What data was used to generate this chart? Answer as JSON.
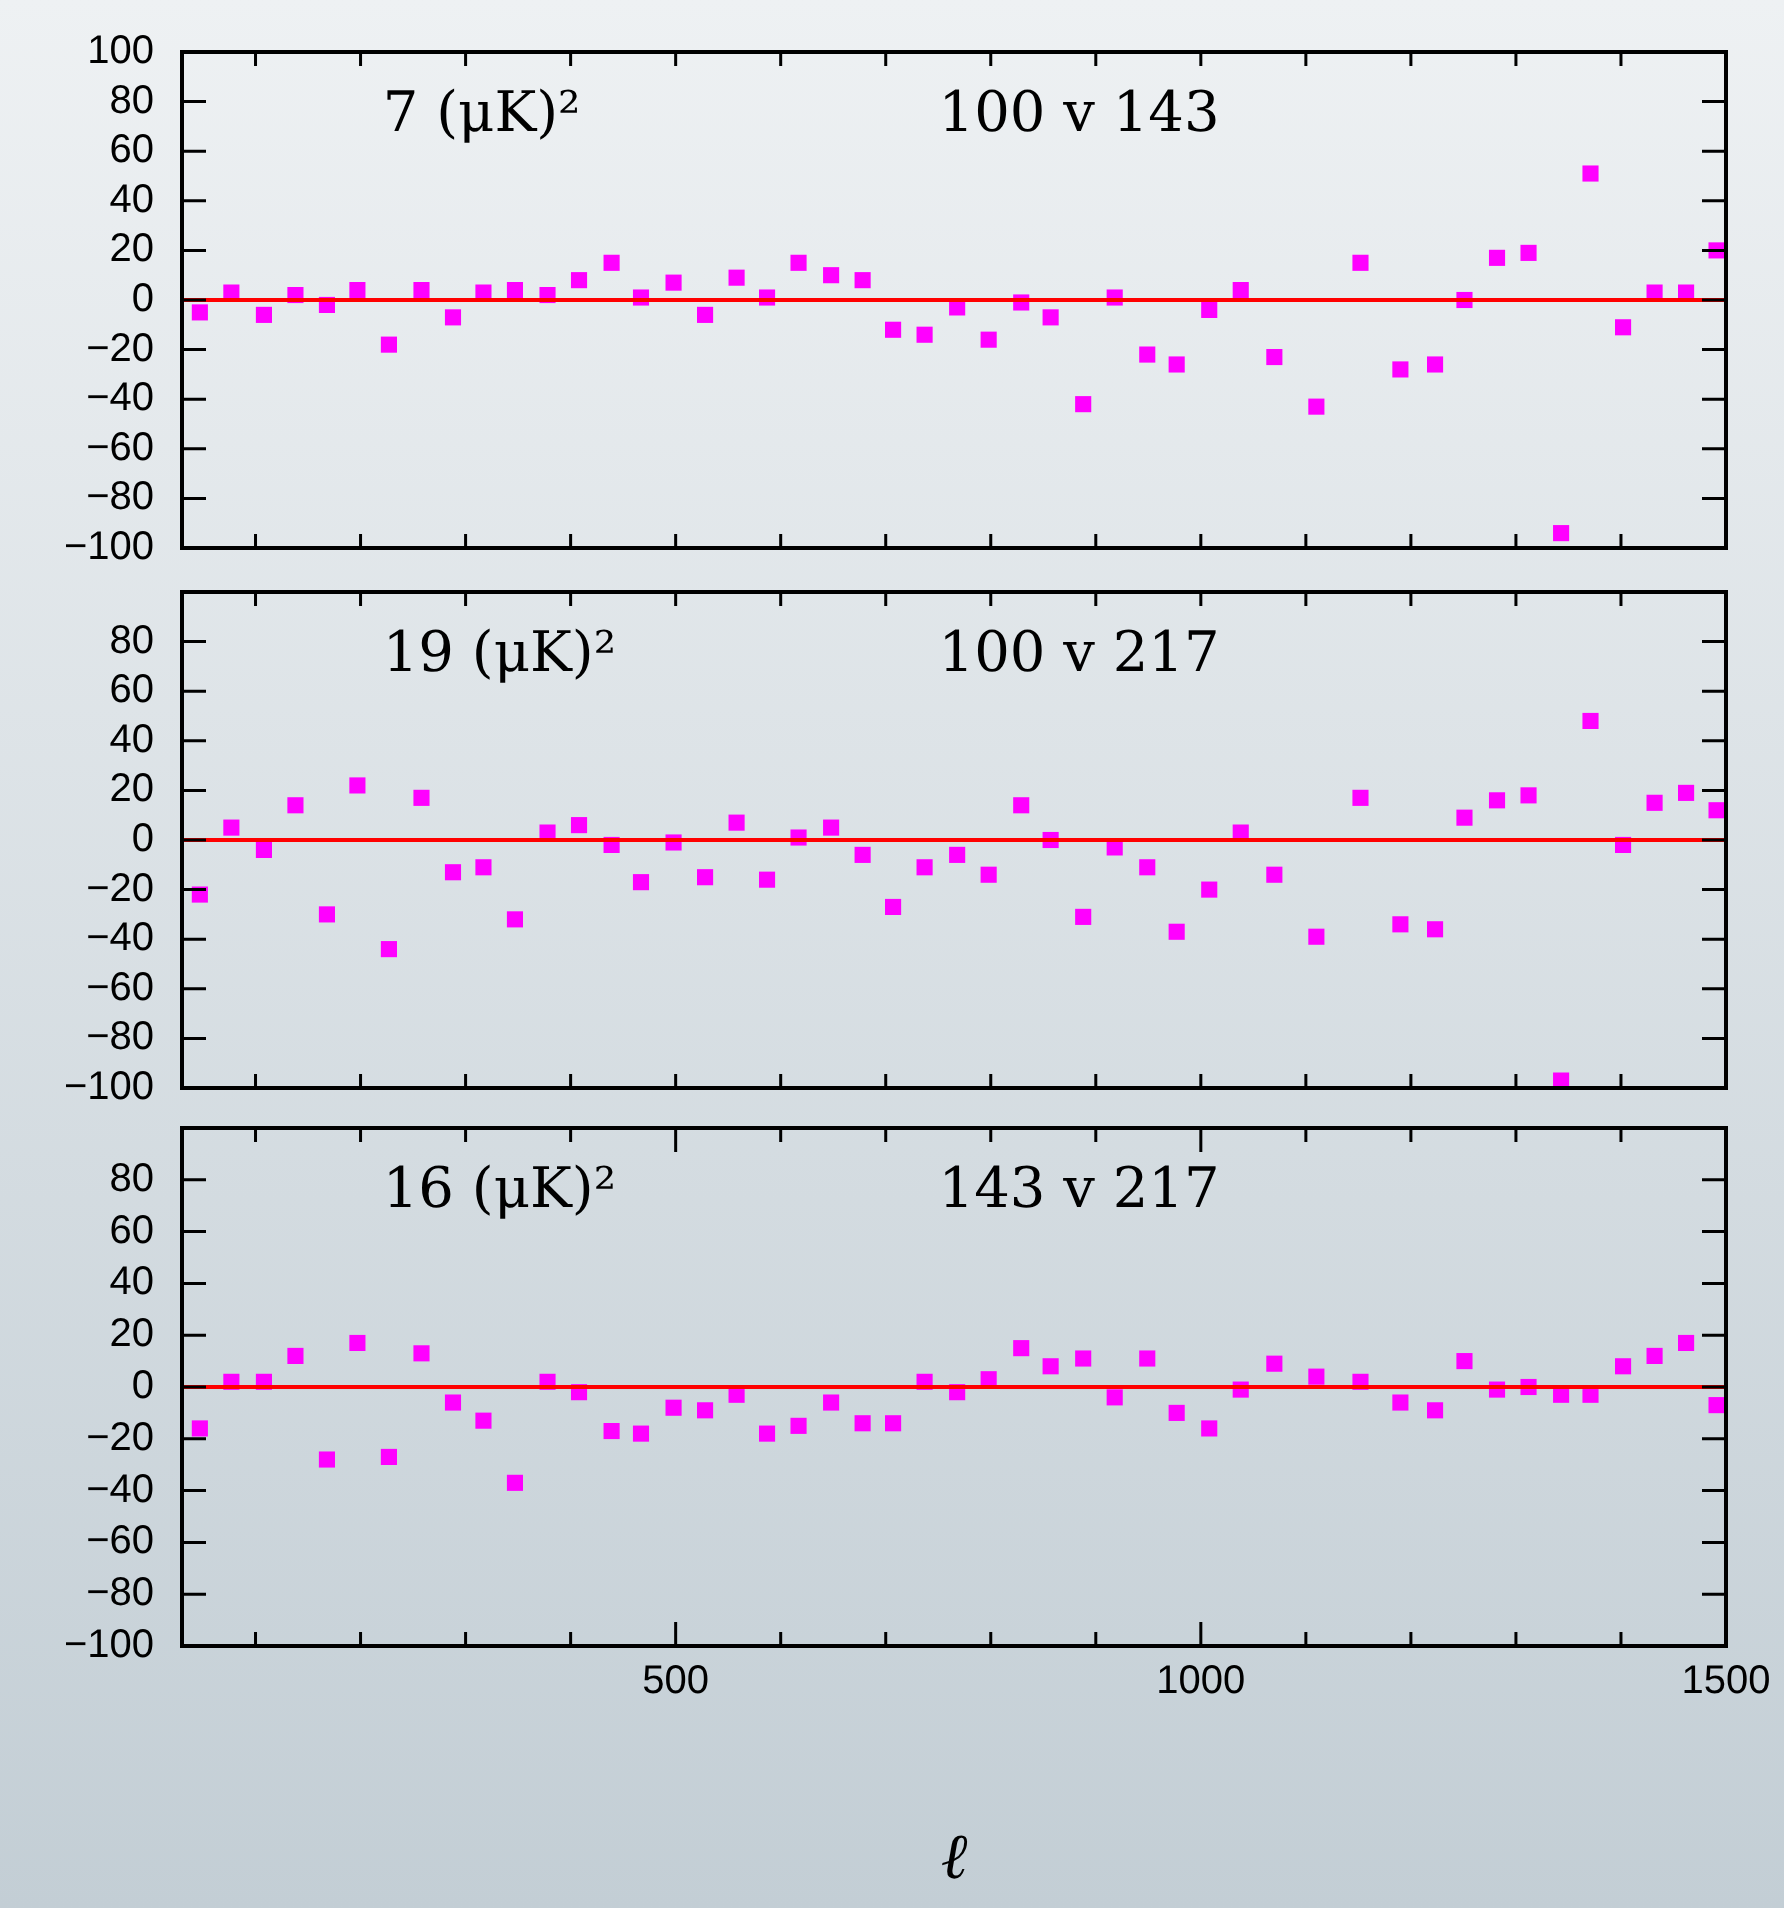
{
  "chart_data": [
    {
      "type": "scatter",
      "color": "#ff00ff",
      "marker": "square",
      "tick_labels": "y",
      "x": [
        47,
        77,
        108,
        138,
        168,
        197,
        227,
        258,
        288,
        317,
        347,
        378,
        408,
        439,
        467,
        498,
        528,
        558,
        587,
        617,
        648,
        678,
        707,
        737,
        768,
        798,
        829,
        857,
        888,
        918,
        949,
        977,
        1008,
        1038,
        1070,
        1110,
        1152,
        1190,
        1223,
        1251,
        1282,
        1312,
        1343,
        1371,
        1402,
        1432,
        1462,
        1491
      ],
      "values": [
        -5,
        3,
        -6,
        2,
        -2,
        4,
        -18,
        4,
        -7,
        3,
        4,
        2,
        8,
        15,
        1,
        7,
        -6,
        9,
        1,
        15,
        10,
        8,
        -12,
        -14,
        -3,
        -16,
        -1,
        -7,
        -42,
        1,
        -22,
        -26,
        -4,
        4,
        -23,
        -43,
        15,
        -28,
        -26,
        0,
        17,
        19,
        -94,
        51,
        -11,
        3,
        3,
        20
      ],
      "xlim": [
        30,
        1500
      ],
      "xticks": [
        {
          "value": 100,
          "label": null
        },
        {
          "value": 200,
          "label": null
        },
        {
          "value": 300,
          "label": null
        },
        {
          "value": 400,
          "label": null
        },
        {
          "value": 500,
          "label": null
        },
        {
          "value": 600,
          "label": null
        },
        {
          "value": 700,
          "label": null
        },
        {
          "value": 800,
          "label": null
        },
        {
          "value": 900,
          "label": null
        },
        {
          "value": 1000,
          "label": null
        },
        {
          "value": 1100,
          "label": null
        },
        {
          "value": 1200,
          "label": null
        },
        {
          "value": 1300,
          "label": null
        },
        {
          "value": 1400,
          "label": null
        },
        {
          "value": 1500,
          "label": null
        }
      ],
      "ylim": [
        -100,
        100
      ],
      "yticks": [
        -100,
        -80,
        -60,
        -40,
        -20,
        0,
        20,
        40,
        60,
        80,
        100
      ],
      "ref_lines": [
        {
          "axis": "y",
          "value": 0,
          "color": "#ff0000"
        }
      ],
      "annotations": [
        "7 (μK)²",
        "100 v 143"
      ]
    },
    {
      "type": "scatter",
      "color": "#ff00ff",
      "marker": "square",
      "tick_labels": "y",
      "x": [
        47,
        77,
        108,
        138,
        168,
        197,
        227,
        258,
        288,
        317,
        347,
        378,
        408,
        439,
        467,
        498,
        528,
        558,
        587,
        617,
        648,
        678,
        707,
        737,
        768,
        798,
        829,
        857,
        888,
        918,
        949,
        977,
        1008,
        1038,
        1070,
        1110,
        1152,
        1190,
        1223,
        1251,
        1282,
        1312,
        1343,
        1371,
        1402,
        1432,
        1462,
        1491
      ],
      "values": [
        -22,
        5,
        -4,
        14,
        -30,
        22,
        -44,
        17,
        -13,
        -11,
        -32,
        3,
        6,
        -2,
        -17,
        -1,
        -15,
        7,
        -16,
        1,
        5,
        -6,
        -27,
        -11,
        -6,
        -14,
        14,
        0,
        -31,
        -3,
        -11,
        -37,
        -20,
        3,
        -14,
        -39,
        17,
        -34,
        -36,
        9,
        16,
        18,
        -97,
        48,
        -2,
        15,
        19,
        12
      ],
      "xlim": [
        30,
        1500
      ],
      "xticks": [
        {
          "value": 100,
          "label": null
        },
        {
          "value": 200,
          "label": null
        },
        {
          "value": 300,
          "label": null
        },
        {
          "value": 400,
          "label": null
        },
        {
          "value": 500,
          "label": null
        },
        {
          "value": 600,
          "label": null
        },
        {
          "value": 700,
          "label": null
        },
        {
          "value": 800,
          "label": null
        },
        {
          "value": 900,
          "label": null
        },
        {
          "value": 1000,
          "label": null
        },
        {
          "value": 1100,
          "label": null
        },
        {
          "value": 1200,
          "label": null
        },
        {
          "value": 1300,
          "label": null
        },
        {
          "value": 1400,
          "label": null
        },
        {
          "value": 1500,
          "label": null
        }
      ],
      "ylim": [
        -100,
        100
      ],
      "yticks": [
        -100,
        -80,
        -60,
        -40,
        -20,
        0,
        20,
        40,
        60,
        80,
        {
          "value": 100,
          "label": null
        }
      ],
      "ref_lines": [
        {
          "axis": "y",
          "value": 0,
          "color": "#ff0000"
        }
      ],
      "annotations": [
        "19 (μK)²",
        "100 v 217"
      ]
    },
    {
      "type": "scatter",
      "color": "#ff00ff",
      "marker": "square",
      "xlabel": "ℓ",
      "x": [
        47,
        77,
        108,
        138,
        168,
        197,
        227,
        258,
        288,
        317,
        347,
        378,
        408,
        439,
        467,
        498,
        528,
        558,
        587,
        617,
        648,
        678,
        707,
        737,
        768,
        798,
        829,
        857,
        888,
        918,
        949,
        977,
        1008,
        1038,
        1070,
        1110,
        1152,
        1190,
        1223,
        1251,
        1282,
        1312,
        1343,
        1371,
        1402,
        1432,
        1462,
        1491
      ],
      "values": [
        -16,
        2,
        2,
        12,
        -28,
        17,
        -27,
        13,
        -6,
        -13,
        -37,
        2,
        -2,
        -17,
        -18,
        -8,
        -9,
        -3,
        -18,
        -15,
        -6,
        -14,
        -14,
        2,
        -2,
        3,
        15,
        8,
        11,
        -4,
        11,
        -10,
        -16,
        -1,
        9,
        4,
        2,
        -6,
        -9,
        10,
        -1,
        0,
        -3,
        -3,
        8,
        12,
        17,
        -7
      ],
      "xlim": [
        30,
        1500
      ],
      "xticks": [
        {
          "value": 100,
          "label": null
        },
        {
          "value": 200,
          "label": null
        },
        {
          "value": 300,
          "label": null
        },
        {
          "value": 400,
          "label": null
        },
        500,
        {
          "value": 600,
          "label": null
        },
        {
          "value": 700,
          "label": null
        },
        {
          "value": 800,
          "label": null
        },
        {
          "value": 900,
          "label": null
        },
        1000,
        {
          "value": 1100,
          "label": null
        },
        {
          "value": 1200,
          "label": null
        },
        {
          "value": 1300,
          "label": null
        },
        {
          "value": 1400,
          "label": null
        },
        1500
      ],
      "ylim": [
        -100,
        100
      ],
      "yticks": [
        -100,
        -80,
        -60,
        -40,
        -20,
        0,
        20,
        40,
        60,
        80,
        {
          "value": 100,
          "label": null
        }
      ],
      "ref_lines": [
        {
          "axis": "y",
          "value": 0,
          "color": "#ff0000"
        }
      ],
      "annotations": [
        "16 (μK)²",
        "143 v 217"
      ]
    }
  ]
}
